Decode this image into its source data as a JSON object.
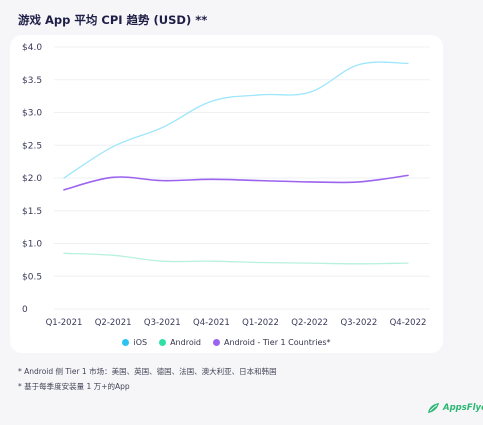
{
  "title": "游戏 App 平均 CPI 趋势 (USD) **",
  "chart_data": {
    "type": "line",
    "categories": [
      "Q1-2021",
      "Q2-2021",
      "Q3-2021",
      "Q4-2021",
      "Q1-2022",
      "Q2-2022",
      "Q3-2022",
      "Q4-2022"
    ],
    "y_ticks": [
      "$4.0",
      "$3.5",
      "$3.0",
      "$2.5",
      "$2.0",
      "$1.5",
      "$1.0",
      "$0.5",
      "0"
    ],
    "ylim": [
      0,
      4.0
    ],
    "grid": true,
    "legend_position": "bottom",
    "series": [
      {
        "name": "iOS",
        "color": "#9ee6fb",
        "values": [
          2.0,
          2.48,
          2.77,
          3.17,
          3.27,
          3.31,
          3.73,
          3.75
        ]
      },
      {
        "name": "Android",
        "color": "#b8f0e0",
        "values": [
          0.85,
          0.82,
          0.73,
          0.73,
          0.71,
          0.7,
          0.69,
          0.7
        ]
      },
      {
        "name": "Android - Tier 1 Countries*",
        "color": "#9c63ef",
        "values": [
          1.82,
          2.01,
          1.96,
          1.98,
          1.96,
          1.94,
          1.94,
          2.04
        ]
      }
    ]
  },
  "legend_colors": {
    "ios": "#29c4f0",
    "android": "#2ee0a6",
    "tier1": "#9c63ef"
  },
  "footnotes": [
    "* Android 侧 Tier 1 市场：美国、英国、德国、法国、澳大利亚、日本和韩国",
    "* 基于每季度安装量 1 万+的App"
  ],
  "logo": {
    "text": "AppsFlyer",
    "icon": "leaf-icon"
  }
}
